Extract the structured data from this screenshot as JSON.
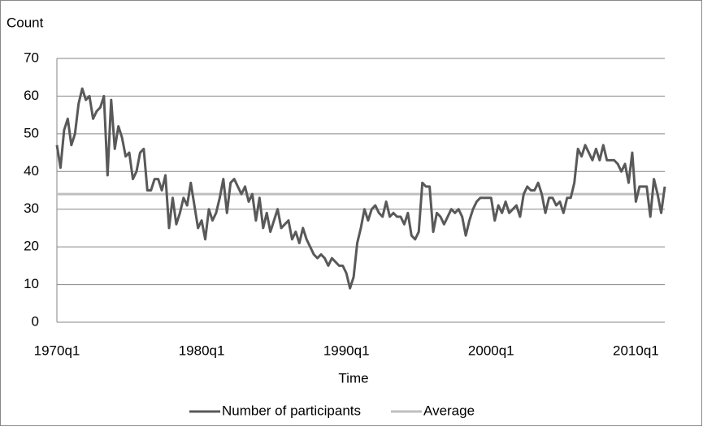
{
  "chart_data": {
    "type": "line",
    "y_label": "Count",
    "x_label": "Time",
    "categories": [
      "1970q1",
      null,
      null,
      null,
      null,
      null,
      null,
      null,
      null,
      null,
      null,
      null,
      null,
      null,
      null,
      null,
      null,
      null,
      null,
      null,
      null,
      null,
      null,
      null,
      null,
      null,
      null,
      null,
      null,
      null,
      null,
      null,
      null,
      null,
      null,
      null,
      null,
      null,
      null,
      null,
      "1980q1",
      null,
      null,
      null,
      null,
      null,
      null,
      null,
      null,
      null,
      null,
      null,
      null,
      null,
      null,
      null,
      null,
      null,
      null,
      null,
      null,
      null,
      null,
      null,
      null,
      null,
      null,
      null,
      null,
      null,
      null,
      null,
      null,
      null,
      null,
      null,
      null,
      null,
      null,
      null,
      "1990q1",
      null,
      null,
      null,
      null,
      null,
      null,
      null,
      null,
      null,
      null,
      null,
      null,
      null,
      null,
      null,
      null,
      null,
      null,
      null,
      null,
      null,
      null,
      null,
      null,
      null,
      null,
      null,
      null,
      null,
      null,
      null,
      null,
      null,
      null,
      null,
      null,
      null,
      null,
      null,
      "2000q1",
      null,
      null,
      null,
      null,
      null,
      null,
      null,
      null,
      null,
      null,
      null,
      null,
      null,
      null,
      null,
      null,
      null,
      null,
      null,
      null,
      null,
      null,
      null,
      null,
      null,
      null,
      null,
      null,
      null,
      null,
      null,
      null,
      null,
      null,
      null,
      null,
      null,
      null,
      null,
      "2010q1",
      null,
      null,
      null,
      null,
      null,
      null,
      null,
      null
    ],
    "series": [
      {
        "name": "Number of participants",
        "color": "#595959",
        "values": [
          47,
          41,
          51,
          54,
          47,
          50,
          58,
          62,
          59,
          60,
          54,
          56,
          57,
          60,
          39,
          59,
          46,
          52,
          49,
          44,
          45,
          38,
          40,
          45,
          46,
          35,
          35,
          38,
          38,
          35,
          39,
          25,
          33,
          26,
          29,
          33,
          31,
          37,
          31,
          25,
          27,
          22,
          30,
          27,
          29,
          33,
          38,
          29,
          37,
          38,
          36,
          34,
          36,
          32,
          34,
          27,
          33,
          25,
          29,
          24,
          27,
          30,
          25,
          26,
          27,
          22,
          24,
          21,
          25,
          22,
          20,
          18,
          17,
          18,
          17,
          15,
          17,
          16,
          15,
          15,
          13,
          9,
          12,
          21,
          25,
          30,
          27,
          30,
          31,
          29,
          28,
          32,
          28,
          29,
          28,
          28,
          26,
          29,
          23,
          22,
          24,
          37,
          36,
          36,
          24,
          29,
          28,
          26,
          28,
          30,
          29,
          30,
          28,
          23,
          27,
          30,
          32,
          33,
          33,
          33,
          33,
          27,
          31,
          29,
          32,
          29,
          30,
          31,
          28,
          34,
          36,
          35,
          35,
          37,
          34,
          29,
          33,
          33,
          31,
          32,
          29,
          33,
          33,
          37,
          46,
          44,
          47,
          45,
          43,
          46,
          43,
          47,
          43,
          43,
          43,
          42,
          40,
          42,
          37,
          45,
          32,
          36,
          36,
          36,
          28,
          38,
          34,
          29,
          36
        ]
      },
      {
        "name": "Average",
        "color": "#bfbfbf",
        "values": [
          34,
          34,
          34,
          34,
          34,
          34,
          34,
          34,
          34,
          34,
          34,
          34,
          34,
          34,
          34,
          34,
          34,
          34,
          34,
          34,
          34,
          34,
          34,
          34,
          34,
          34,
          34,
          34,
          34,
          34,
          34,
          34,
          34,
          34,
          34,
          34,
          34,
          34,
          34,
          34,
          34,
          34,
          34,
          34,
          34,
          34,
          34,
          34,
          34,
          34,
          34,
          34,
          34,
          34,
          34,
          34,
          34,
          34,
          34,
          34,
          34,
          34,
          34,
          34,
          34,
          34,
          34,
          34,
          34,
          34,
          34,
          34,
          34,
          34,
          34,
          34,
          34,
          34,
          34,
          34,
          34,
          34,
          34,
          34,
          34,
          34,
          34,
          34,
          34,
          34,
          34,
          34,
          34,
          34,
          34,
          34,
          34,
          34,
          34,
          34,
          34,
          34,
          34,
          34,
          34,
          34,
          34,
          34,
          34,
          34,
          34,
          34,
          34,
          34,
          34,
          34,
          34,
          34,
          34,
          34,
          34,
          34,
          34,
          34,
          34,
          34,
          34,
          34,
          34,
          34,
          34,
          34,
          34,
          34,
          34,
          34,
          34,
          34,
          34,
          34,
          34,
          34,
          34,
          34,
          34,
          34,
          34,
          34,
          34,
          34,
          34,
          34,
          34,
          34,
          34,
          34,
          34,
          34,
          34,
          34,
          34,
          34,
          34,
          34,
          34,
          34,
          34,
          34,
          34
        ]
      }
    ],
    "ylim": [
      0,
      70
    ],
    "yticks": [
      0,
      10,
      20,
      30,
      40,
      50,
      60,
      70
    ],
    "grid": true,
    "legend": "bottom"
  }
}
